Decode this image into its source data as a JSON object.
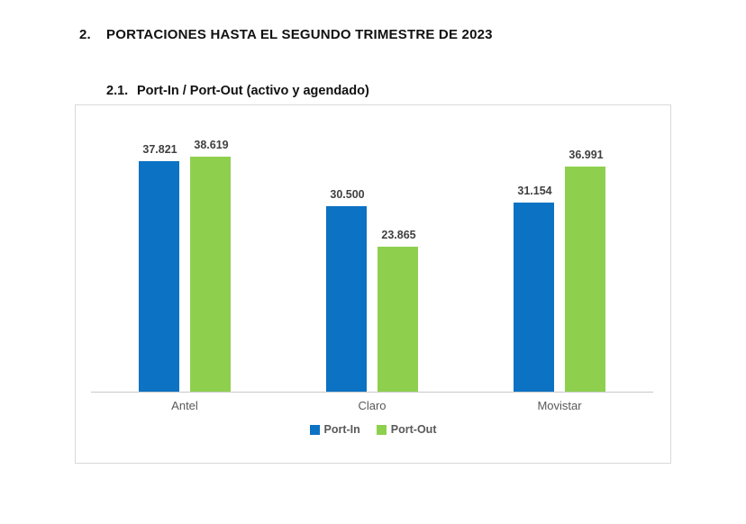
{
  "page": {
    "section_number": "2.",
    "section_title": "PORTACIONES HASTA EL SEGUNDO TRIMESTRE DE 2023",
    "subsection_number": "2.1.",
    "subsection_title": "Port-In / Port-Out (activo y agendado)"
  },
  "colors": {
    "port_in": "#0C72C3",
    "port_out": "#8ED04E",
    "chart_border": "#D9D9D9",
    "axis_line": "#C9C9C9",
    "data_label": "#404040",
    "category_label": "#595959"
  },
  "chart_data": {
    "type": "bar",
    "title": "2.1. Port-In / Port-Out (activo y agendado)",
    "categories": [
      "Antel",
      "Claro",
      "Movistar"
    ],
    "series": [
      {
        "name": "Port-In",
        "color": "#0C72C3",
        "values": [
          37821,
          30500,
          31154
        ],
        "labels": [
          "37.821",
          "30.500",
          "31.154"
        ]
      },
      {
        "name": "Port-Out",
        "color": "#8ED04E",
        "values": [
          38619,
          23865,
          36991
        ],
        "labels": [
          "38.619",
          "23.865",
          "36.991"
        ]
      }
    ],
    "xlabel": "",
    "ylabel": "",
    "ylim": [
      0,
      45000
    ],
    "grid": false,
    "y_axis_visible": false,
    "legend_position": "bottom"
  }
}
